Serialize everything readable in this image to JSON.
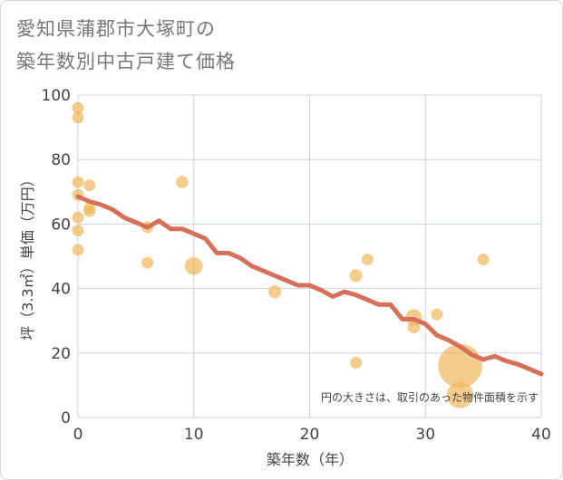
{
  "title": {
    "line1": "愛知県蒲郡市大塚町の",
    "line2": "築年数別中古戸建て価格"
  },
  "colors": {
    "bubble": "#f0b95e",
    "trend": "#d6705a",
    "grid": "#c9d4df",
    "text": "#444444"
  },
  "chart_data": {
    "type": "scatter",
    "xlabel": "築年数（年）",
    "ylabel": "坪（3.3㎡）単価（万円）",
    "xlim": [
      0,
      40
    ],
    "ylim": [
      0,
      100
    ],
    "xticks": [
      0,
      10,
      20,
      30,
      40
    ],
    "yticks": [
      0,
      20,
      40,
      60,
      80,
      100
    ],
    "grid": true,
    "note": "円の大きさは、取引のあった物件面積を示す",
    "points": [
      {
        "x": 0,
        "y": 96,
        "size": 1
      },
      {
        "x": 0,
        "y": 93,
        "size": 1
      },
      {
        "x": 0,
        "y": 73,
        "size": 1
      },
      {
        "x": 0,
        "y": 69,
        "size": 1
      },
      {
        "x": 0,
        "y": 62,
        "size": 1
      },
      {
        "x": 0,
        "y": 58,
        "size": 1
      },
      {
        "x": 0,
        "y": 52,
        "size": 1
      },
      {
        "x": 1,
        "y": 72,
        "size": 1
      },
      {
        "x": 1,
        "y": 65,
        "size": 1
      },
      {
        "x": 1,
        "y": 64,
        "size": 1
      },
      {
        "x": 6,
        "y": 59,
        "size": 1
      },
      {
        "x": 6,
        "y": 48,
        "size": 1
      },
      {
        "x": 9,
        "y": 73,
        "size": 1.1
      },
      {
        "x": 10,
        "y": 47,
        "size": 2.3
      },
      {
        "x": 17,
        "y": 39,
        "size": 1.2
      },
      {
        "x": 24,
        "y": 44,
        "size": 1.2
      },
      {
        "x": 24,
        "y": 17,
        "size": 1
      },
      {
        "x": 25,
        "y": 49,
        "size": 1
      },
      {
        "x": 29,
        "y": 31,
        "size": 2
      },
      {
        "x": 29,
        "y": 28,
        "size": 1.1
      },
      {
        "x": 31,
        "y": 32,
        "size": 1
      },
      {
        "x": 33,
        "y": 16,
        "size": 14
      },
      {
        "x": 33,
        "y": 7,
        "size": 5
      },
      {
        "x": 35,
        "y": 49,
        "size": 1
      }
    ],
    "trend": {
      "x": [
        0,
        1,
        2,
        3,
        4,
        5,
        6,
        7,
        8,
        9,
        10,
        11,
        12,
        13,
        14,
        15,
        16,
        17,
        18,
        19,
        20,
        21,
        22,
        23,
        24,
        25,
        26,
        27,
        28,
        29,
        30,
        31,
        32,
        33,
        34,
        35,
        36,
        37,
        38,
        39,
        40
      ],
      "y": [
        68.5,
        67,
        66,
        64.5,
        62,
        60.5,
        59,
        61,
        58.5,
        58.5,
        57,
        55.5,
        51,
        51,
        49.5,
        47,
        45.5,
        44,
        42.5,
        41,
        41,
        39.5,
        37.5,
        39,
        38,
        36.5,
        35,
        35,
        30.5,
        30.5,
        29,
        25.5,
        24,
        22,
        19.5,
        18,
        19,
        17.5,
        16.5,
        15,
        13.5
      ]
    }
  }
}
